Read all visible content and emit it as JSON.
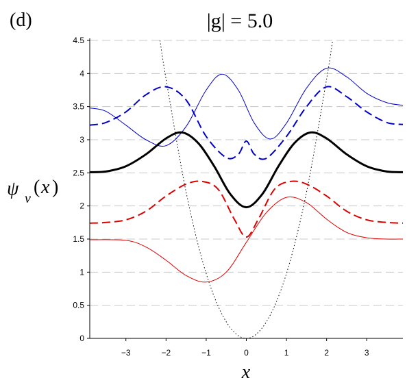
{
  "panel_label": "(d)",
  "title": "|g| = 5.0",
  "ylabel": {
    "main": "ψ",
    "sub": "ν",
    "open": "(",
    "var": "x",
    "close": ")"
  },
  "xlabel": "x",
  "colors": {
    "black": "#000000",
    "blue": "#0000cc",
    "red": "#dd0000",
    "grid": "#c8c8c8",
    "axis": "#000000"
  },
  "chart_data": {
    "type": "line",
    "xlim": [
      -3.9,
      3.9
    ],
    "ylim": [
      0,
      4.5
    ],
    "x_ticks": [
      -3,
      -2,
      -1,
      0,
      1,
      2,
      3
    ],
    "x_tick_labels": [
      "−3",
      "−2",
      "−1",
      "0",
      "1",
      "2",
      "3"
    ],
    "y_ticks": [
      0,
      0.5,
      1,
      1.5,
      2,
      2.5,
      3,
      3.5,
      4,
      4.5
    ],
    "y_tick_labels": [
      "0",
      "0.5",
      "1",
      "1.5",
      "2",
      "2.5",
      "3",
      "3.5",
      "4",
      "4.5"
    ],
    "grid": "horizontal dashed",
    "series": [
      {
        "style": "dotted",
        "color": "black",
        "width": 1,
        "points": [
          [
            -2.15,
            4.5
          ],
          [
            -2,
            3.92
          ],
          [
            -1.5,
            2.21
          ],
          [
            -1,
            0.98
          ],
          [
            -0.5,
            0.25
          ],
          [
            0,
            0
          ],
          [
            0.5,
            0.25
          ],
          [
            1,
            0.98
          ],
          [
            1.5,
            2.21
          ],
          [
            2,
            3.92
          ],
          [
            2.15,
            4.5
          ]
        ]
      },
      {
        "style": "solid",
        "color": "blue",
        "width": 1,
        "points": [
          [
            -3.9,
            3.48
          ],
          [
            -3.5,
            3.43
          ],
          [
            -3,
            3.22
          ],
          [
            -2.5,
            3.0
          ],
          [
            -2,
            2.91
          ],
          [
            -1.5,
            3.2
          ],
          [
            -1,
            3.75
          ],
          [
            -0.6,
            3.99
          ],
          [
            -0.2,
            3.75
          ],
          [
            0.2,
            3.25
          ],
          [
            0.6,
            3.01
          ],
          [
            1,
            3.25
          ],
          [
            1.5,
            3.78
          ],
          [
            2,
            4.08
          ],
          [
            2.5,
            3.95
          ],
          [
            3,
            3.7
          ],
          [
            3.5,
            3.56
          ],
          [
            3.9,
            3.52
          ]
        ]
      },
      {
        "style": "dashed",
        "color": "blue",
        "width": 2,
        "points": [
          [
            -3.9,
            3.22
          ],
          [
            -3.5,
            3.26
          ],
          [
            -3,
            3.42
          ],
          [
            -2.5,
            3.68
          ],
          [
            -2,
            3.8
          ],
          [
            -1.5,
            3.6
          ],
          [
            -1,
            3.05
          ],
          [
            -0.5,
            2.73
          ],
          [
            -0.2,
            2.78
          ],
          [
            0,
            2.98
          ],
          [
            0.2,
            2.78
          ],
          [
            0.5,
            2.72
          ],
          [
            1,
            3.05
          ],
          [
            1.5,
            3.5
          ],
          [
            2,
            3.8
          ],
          [
            2.5,
            3.65
          ],
          [
            3,
            3.42
          ],
          [
            3.5,
            3.26
          ],
          [
            3.9,
            3.23
          ]
        ]
      },
      {
        "style": "solid",
        "color": "black",
        "width": 3,
        "points": [
          [
            -3.9,
            2.51
          ],
          [
            -3.5,
            2.52
          ],
          [
            -3,
            2.6
          ],
          [
            -2.5,
            2.78
          ],
          [
            -2,
            3.02
          ],
          [
            -1.6,
            3.11
          ],
          [
            -1.2,
            2.95
          ],
          [
            -0.8,
            2.6
          ],
          [
            -0.4,
            2.18
          ],
          [
            0,
            1.98
          ],
          [
            0.4,
            2.18
          ],
          [
            0.8,
            2.6
          ],
          [
            1.2,
            2.95
          ],
          [
            1.6,
            3.11
          ],
          [
            2,
            3.02
          ],
          [
            2.5,
            2.78
          ],
          [
            3,
            2.6
          ],
          [
            3.5,
            2.52
          ],
          [
            3.9,
            2.51
          ]
        ]
      },
      {
        "style": "dashed",
        "color": "red",
        "width": 2,
        "points": [
          [
            -3.9,
            1.74
          ],
          [
            -3.5,
            1.75
          ],
          [
            -3,
            1.79
          ],
          [
            -2.5,
            1.92
          ],
          [
            -2,
            2.15
          ],
          [
            -1.5,
            2.33
          ],
          [
            -1.1,
            2.37
          ],
          [
            -0.7,
            2.25
          ],
          [
            -0.3,
            1.8
          ],
          [
            0,
            1.53
          ],
          [
            0.3,
            1.8
          ],
          [
            0.7,
            2.25
          ],
          [
            1.1,
            2.37
          ],
          [
            1.5,
            2.33
          ],
          [
            2,
            2.15
          ],
          [
            2.5,
            1.92
          ],
          [
            3,
            1.79
          ],
          [
            3.5,
            1.75
          ],
          [
            3.9,
            1.74
          ]
        ]
      },
      {
        "style": "solid",
        "color": "red",
        "width": 1,
        "points": [
          [
            -3.9,
            1.49
          ],
          [
            -3,
            1.48
          ],
          [
            -2.5,
            1.38
          ],
          [
            -2,
            1.18
          ],
          [
            -1.5,
            0.95
          ],
          [
            -1,
            0.85
          ],
          [
            -0.5,
            1.0
          ],
          [
            0,
            1.45
          ],
          [
            0.5,
            1.9
          ],
          [
            1,
            2.13
          ],
          [
            1.5,
            2.05
          ],
          [
            2,
            1.8
          ],
          [
            2.5,
            1.6
          ],
          [
            3,
            1.52
          ],
          [
            3.5,
            1.5
          ],
          [
            3.9,
            1.5
          ]
        ]
      }
    ]
  }
}
